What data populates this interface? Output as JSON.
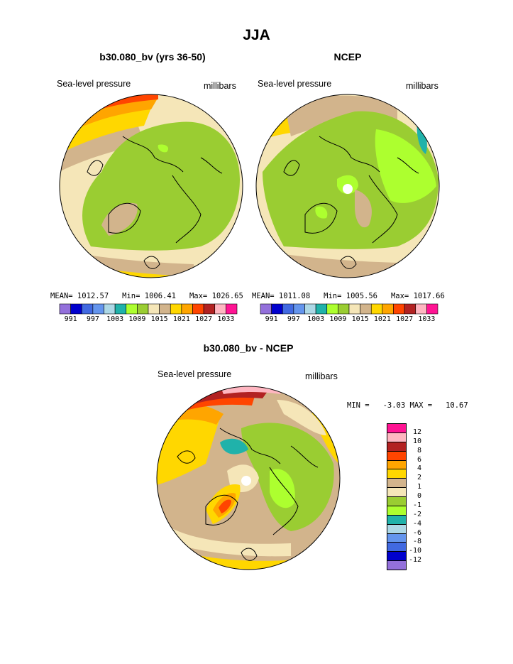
{
  "figure": {
    "title": "JJA",
    "panel_left": {
      "subtitle": "b30.080_bv (yrs 36-50)",
      "variable": "Sea-level pressure",
      "units": "millibars",
      "stats": "MEAN= 1012.57   Min= 1006.41   Max= 1026.65"
    },
    "panel_right": {
      "subtitle": "NCEP",
      "variable": "Sea-level pressure",
      "units": "millibars",
      "stats": "MEAN= 1011.08   Min= 1005.56   Max= 1017.66"
    },
    "panel_diff": {
      "subtitle": "b30.080_bv - NCEP",
      "variable": "Sea-level pressure",
      "units": "millibars",
      "stats": "MIN =   -3.03 MAX =   10.67"
    }
  },
  "colorbar_abs": {
    "colors": [
      "#9370DB",
      "#0000CD",
      "#4169E1",
      "#6495ED",
      "#ADD8E6",
      "#20B2AA",
      "#ADFF2F",
      "#9ACD32",
      "#F5E6B8",
      "#D2B48C",
      "#FFD700",
      "#FFA500",
      "#FF4500",
      "#B22222",
      "#FFB6C1",
      "#FF1493"
    ],
    "labels": [
      "991",
      "997",
      "1003",
      "1009",
      "1015",
      "1021",
      "1027",
      "1033"
    ]
  },
  "colorbar_diff": {
    "colors": [
      "#FF1493",
      "#FFB6C1",
      "#B22222",
      "#FF4500",
      "#FFA500",
      "#FFD700",
      "#D2B48C",
      "#F5E6B8",
      "#9ACD32",
      "#ADFF2F",
      "#20B2AA",
      "#ADD8E6",
      "#6495ED",
      "#4169E1",
      "#0000CD",
      "#9370DB"
    ],
    "labels": [
      "12",
      "10",
      "8",
      "6",
      "4",
      "2",
      "1",
      "0",
      "-1",
      "-2",
      "-4",
      "-6",
      "-8",
      "-10",
      "-12"
    ]
  },
  "palette": {
    "green": "#9ACD32",
    "light_green": "#ADFF2F",
    "cream": "#F5E6B8",
    "tan": "#D2B48C",
    "yellow": "#FFD700",
    "orange": "#FFA500",
    "red_orange": "#FF4500",
    "dark_red": "#B22222",
    "pink": "#FFB6C1",
    "teal": "#20B2AA"
  }
}
